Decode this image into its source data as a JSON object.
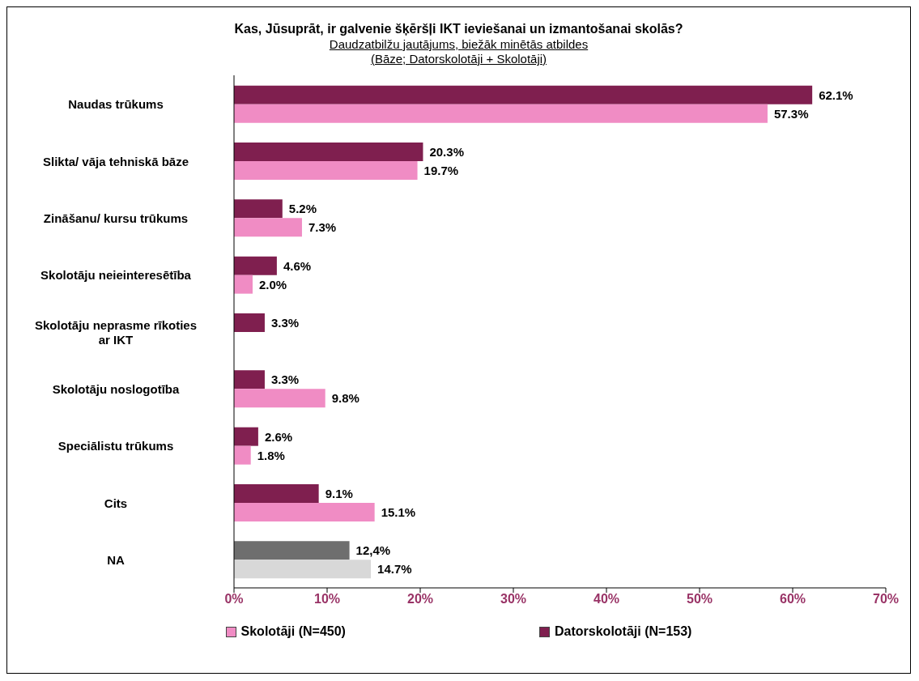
{
  "chart_data": {
    "type": "bar",
    "orientation": "horizontal",
    "title": "Kas, Jūsuprāt, ir galvenie šķēršļi IKT ieviešanai un izmantošanai skolās?",
    "subtitle": "Daudzatbilžu jautājums, biežāk minētās atbildes\n(Bāze;  Datorskolotāji + Skolotāji)",
    "categories": [
      "Naudas trūkums",
      "Slikta/ vāja tehniskā bāze",
      "Zināšanu/ kursu trūkums",
      "Skolotāju neieinteresētība",
      "Skolotāju neprasme rīkoties ar IKT",
      "Skolotāju noslogotība",
      "Speciālistu trūkums",
      "Cits",
      "NA"
    ],
    "series": [
      {
        "name": "Datorskolotāji (N=153)",
        "color": "#7f1f4f",
        "colors": [
          "#7f1f4f",
          "#7f1f4f",
          "#7f1f4f",
          "#7f1f4f",
          "#7f1f4f",
          "#7f1f4f",
          "#7f1f4f",
          "#7f1f4f",
          "#6e6e6e"
        ],
        "values": [
          62.1,
          20.3,
          5.2,
          4.6,
          3.3,
          3.3,
          2.6,
          9.1,
          12.4
        ],
        "value_labels": [
          "62.1%",
          "20.3%",
          "5.2%",
          "4.6%",
          "3.3%",
          "3.3%",
          "2.6%",
          "9.1%",
          "12,4%"
        ]
      },
      {
        "name": "Skolotāji (N=450)",
        "color": "#f08cc4",
        "colors": [
          "#f08cc4",
          "#f08cc4",
          "#f08cc4",
          "#f08cc4",
          "#f08cc4",
          "#f08cc4",
          "#f08cc4",
          "#f08cc4",
          "#d8d8d8"
        ],
        "values": [
          57.3,
          19.7,
          7.3,
          2.0,
          null,
          9.8,
          1.8,
          15.1,
          14.7
        ],
        "value_labels": [
          "57.3%",
          "19.7%",
          "7.3%",
          "2.0%",
          null,
          "9.8%",
          "1.8%",
          "15.1%",
          "14.7%"
        ]
      }
    ],
    "xlim": [
      0,
      70
    ],
    "xticks": [
      {
        "value": 0,
        "label": "0%"
      },
      {
        "value": 10,
        "label": "10%"
      },
      {
        "value": 20,
        "label": "20%"
      },
      {
        "value": 30,
        "label": "30%"
      },
      {
        "value": 40,
        "label": "40%"
      },
      {
        "value": 50,
        "label": "50%"
      },
      {
        "value": 60,
        "label": "60%"
      },
      {
        "value": 70,
        "label": "70%"
      }
    ],
    "grid": false,
    "legend": "bottom"
  }
}
